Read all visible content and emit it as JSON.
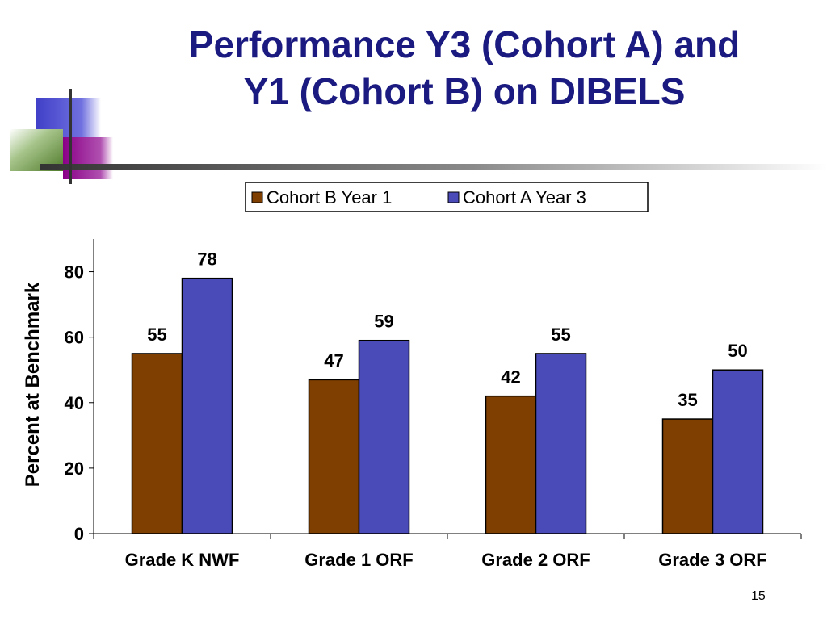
{
  "slide": {
    "title_line1": "Performance Y3 (Cohort A) and",
    "title_line2": "Y1 (Cohort B) on DIBELS",
    "number": "15"
  },
  "chart_data": {
    "type": "bar",
    "categories": [
      "Grade K NWF",
      "Grade 1 ORF",
      "Grade 2 ORF",
      "Grade 3 ORF"
    ],
    "series": [
      {
        "name": "Cohort B Year 1",
        "values": [
          55,
          47,
          42,
          35
        ],
        "color": "#7f3f00"
      },
      {
        "name": "Cohort A Year 3",
        "values": [
          78,
          59,
          55,
          50
        ],
        "color": "#4a4ab8"
      }
    ],
    "data_labels": [
      [
        "55",
        "47",
        "42",
        "35"
      ],
      [
        "78",
        "59",
        "55",
        "50"
      ]
    ],
    "title": "",
    "xlabel": "",
    "ylabel": "Percent at Benchmark",
    "ylim": [
      0,
      90
    ],
    "yticks": [
      0,
      20,
      40,
      60,
      80
    ],
    "grid": false,
    "legend_position": "top"
  }
}
